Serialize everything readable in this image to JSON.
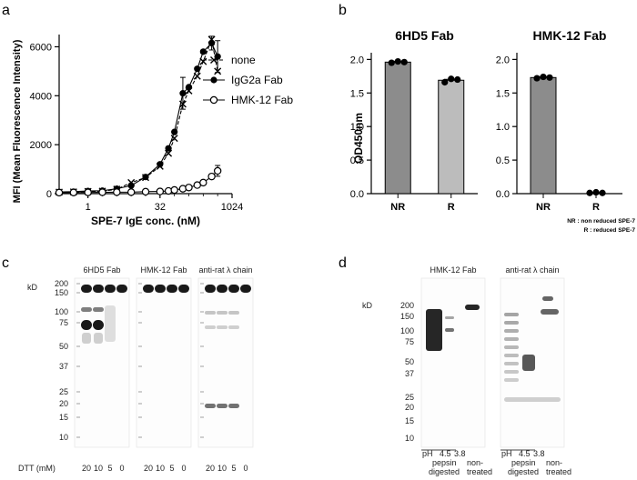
{
  "panels": {
    "a": {
      "label": "a",
      "chart_data": {
        "type": "line",
        "xscale": "log2",
        "xlim": [
          0.25,
          1024
        ],
        "ylim": [
          0,
          6500
        ],
        "xticks": [
          1,
          32,
          1024
        ],
        "yticks": [
          0,
          2000,
          4000,
          6000
        ],
        "xlabel": "SPE-7 IgE conc. (nM)",
        "ylabel": "MFI (Mean Fluorescence Intensity)",
        "legend_position": "top-left",
        "series": [
          {
            "name": "none",
            "marker": "x",
            "x": [
              0.25,
              0.5,
              1,
              2,
              4,
              8,
              16,
              32,
              48,
              64,
              96,
              128,
              192,
              256,
              384,
              512
            ],
            "y": [
              60,
              70,
              90,
              100,
              180,
              450,
              660,
              1120,
              1650,
              2260,
              3660,
              4200,
              4800,
              5400,
              6300,
              5000
            ]
          },
          {
            "name": "IgG2a Fab",
            "marker": "filled-circle",
            "x": [
              0.25,
              0.5,
              1,
              2,
              4,
              8,
              16,
              32,
              48,
              64,
              96,
              128,
              192,
              256,
              384,
              512
            ],
            "y": [
              70,
              80,
              110,
              120,
              200,
              330,
              680,
              1200,
              1850,
              2520,
              4100,
              4350,
              5100,
              5800,
              6150,
              5600
            ],
            "err": [
              0,
              0,
              0,
              0,
              0,
              0,
              0,
              0,
              0,
              0,
              650,
              0,
              0,
              0,
              280,
              650
            ]
          },
          {
            "name": "HMK-12 Fab",
            "marker": "open-circle",
            "x": [
              0.25,
              0.5,
              1,
              2,
              4,
              8,
              16,
              32,
              48,
              64,
              96,
              128,
              192,
              256,
              384,
              512
            ],
            "y": [
              40,
              45,
              50,
              55,
              60,
              60,
              80,
              90,
              110,
              150,
              200,
              250,
              350,
              450,
              700,
              930
            ],
            "err": [
              0,
              0,
              0,
              0,
              0,
              0,
              0,
              0,
              0,
              0,
              0,
              0,
              0,
              0,
              0,
              220
            ]
          }
        ]
      }
    },
    "b": {
      "label": "b",
      "ylabel": "OD450nm",
      "legend_note": [
        "NR : non reduced SPE-7",
        "R : reduced SPE-7"
      ],
      "chart_data": [
        {
          "type": "bar",
          "title": "6HD5 Fab",
          "categories": [
            "NR",
            "R"
          ],
          "values": [
            1.96,
            1.69
          ],
          "points": [
            [
              1.95,
              1.97,
              1.96
            ],
            [
              1.66,
              1.71,
              1.7
            ]
          ],
          "colors": [
            "#8c8c8c",
            "#bcbcbc"
          ],
          "ylim": [
            0,
            2.1
          ],
          "yticks": [
            "0.0",
            "0.5",
            "1.0",
            "1.5",
            "2.0"
          ]
        },
        {
          "type": "bar",
          "title": "HMK-12 Fab",
          "categories": [
            "NR",
            "R"
          ],
          "values": [
            1.73,
            0.0
          ],
          "points": [
            [
              1.72,
              1.74,
              1.73
            ],
            [
              0.01,
              0.02,
              0.01
            ]
          ],
          "colors": [
            "#8c8c8c",
            "#bcbcbc"
          ],
          "ylim": [
            0,
            2.1
          ],
          "yticks": [
            "0.0",
            "0.5",
            "1.0",
            "1.5",
            "2.0"
          ]
        }
      ]
    },
    "c": {
      "label": "c",
      "kd_label": "kD",
      "markers": [
        "200",
        "150",
        "100",
        "75",
        "50",
        "37",
        "25",
        "20",
        "15",
        "10"
      ],
      "blot_titles": [
        "6HD5 Fab",
        "HMK-12 Fab",
        "anti-rat λ chain"
      ],
      "lane_labels": [
        "20",
        "10",
        "5",
        "0"
      ],
      "dtt_label": "DTT (mM)"
    },
    "d": {
      "label": "d",
      "kd_label": "kD",
      "markers": [
        "200",
        "150",
        "100",
        "75",
        "50",
        "37",
        "25",
        "20",
        "15",
        "10"
      ],
      "blot_titles": [
        "HMK-12 Fab",
        "anti-rat λ chain"
      ],
      "ph_prefix": "pH",
      "ph_values": [
        "4.5",
        "3.8"
      ],
      "group_labels": [
        "pepsin",
        "digested",
        "non-",
        "treated"
      ]
    }
  }
}
